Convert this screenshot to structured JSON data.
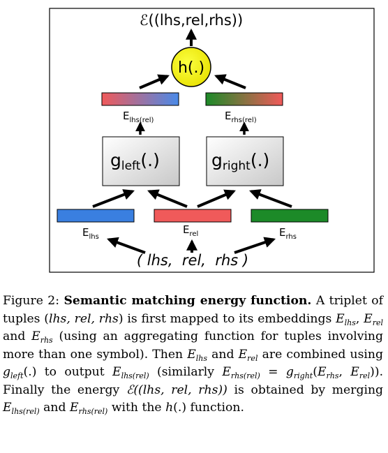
{
  "diagram": {
    "energy": "ℰ((lhs,rel,rhs))",
    "h_label": "h(.)",
    "g_left": {
      "base": "g",
      "sub": "left",
      "tail": "(.)"
    },
    "g_right": {
      "base": "g",
      "sub": "right",
      "tail": "(.)"
    },
    "e_lhs_rel": {
      "base": "E",
      "sub": "lhs(rel)"
    },
    "e_rhs_rel": {
      "base": "E",
      "sub": "rhs(rel)"
    },
    "e_lhs": {
      "base": "E",
      "sub": "lhs"
    },
    "e_rel": {
      "base": "E",
      "sub": "rel"
    },
    "e_rhs": {
      "base": "E",
      "sub": "rhs"
    },
    "input_tuple": "( lhs,  rel,  rhs )",
    "colors": {
      "lhs": "#3a7fe0",
      "rel": "#f05a5a",
      "rhs": "#1c8a28",
      "h_node": "#f4f000"
    }
  },
  "caption": {
    "label": "Figure 2:",
    "title": "Semantic matching energy function.",
    "s1a": "A triplet of tuples (",
    "s1_math": "lhs, rel, rhs",
    "s1b": ") is first mapped to its embeddings",
    "e": "E",
    "lhs": "lhs",
    "rel": "rel",
    "rhs": "rhs",
    "and": "and",
    "s2": "(using an aggregating function for tuples involving more than one symbol). Then",
    "combined": "are combined using",
    "g": "g",
    "left": "left",
    "right": "right",
    "paren_dot": "(.)",
    "to_output": "to output",
    "lhs_rel": "lhs(rel)",
    "rhs_rel": "rhs(rel)",
    "similarly": "(similarly",
    "eq": "=",
    "s3": "). Finally the energy",
    "energy_math": "ℰ((lhs, rel, rhs))",
    "s4": "is obtained by merging",
    "with_the": "with the",
    "h": "h",
    "function": "function."
  }
}
